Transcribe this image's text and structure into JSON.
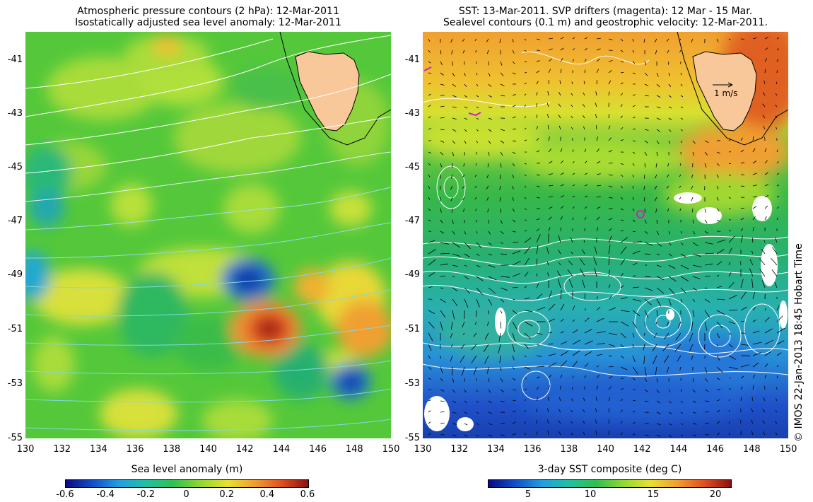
{
  "left": {
    "title_line1": "Atmospheric pressure contours (2 hPa): 12-Mar-2011",
    "title_line2": "Isostatically adjusted sea level anomaly: 12-Mar-2011",
    "colorbar_label": "Sea level anomaly (m)",
    "colorbar_ticks": [
      "-0.6",
      "-0.4",
      "-0.2",
      "0",
      "0.2",
      "0.4",
      "0.6"
    ],
    "colorbar_range": [
      -0.6,
      0.6
    ]
  },
  "right": {
    "title_line1": "SST: 13-Mar-2011. SVP drifters (magenta): 12 Mar - 15 Mar.",
    "title_line2": "Sealevel contours (0.1 m) and geostrophic velocity: 12-Mar-2011.",
    "colorbar_label": "3-day SST composite (deg C)",
    "colorbar_ticks": [
      "5",
      "10",
      "15",
      "20"
    ],
    "scale_arrow_label": "1 m/s"
  },
  "x_ticks": [
    "130",
    "132",
    "134",
    "136",
    "138",
    "140",
    "142",
    "144",
    "146",
    "148",
    "150"
  ],
  "y_ticks": [
    "-41",
    "-43",
    "-45",
    "-47",
    "-49",
    "-51",
    "-53",
    "-55"
  ],
  "credit": "© IMOS 22-Jan-2013 18:45 Hobart Time",
  "colors": {
    "land": "#f9c89a",
    "drifter": "#d020c8",
    "contour": "#ffffff"
  }
}
